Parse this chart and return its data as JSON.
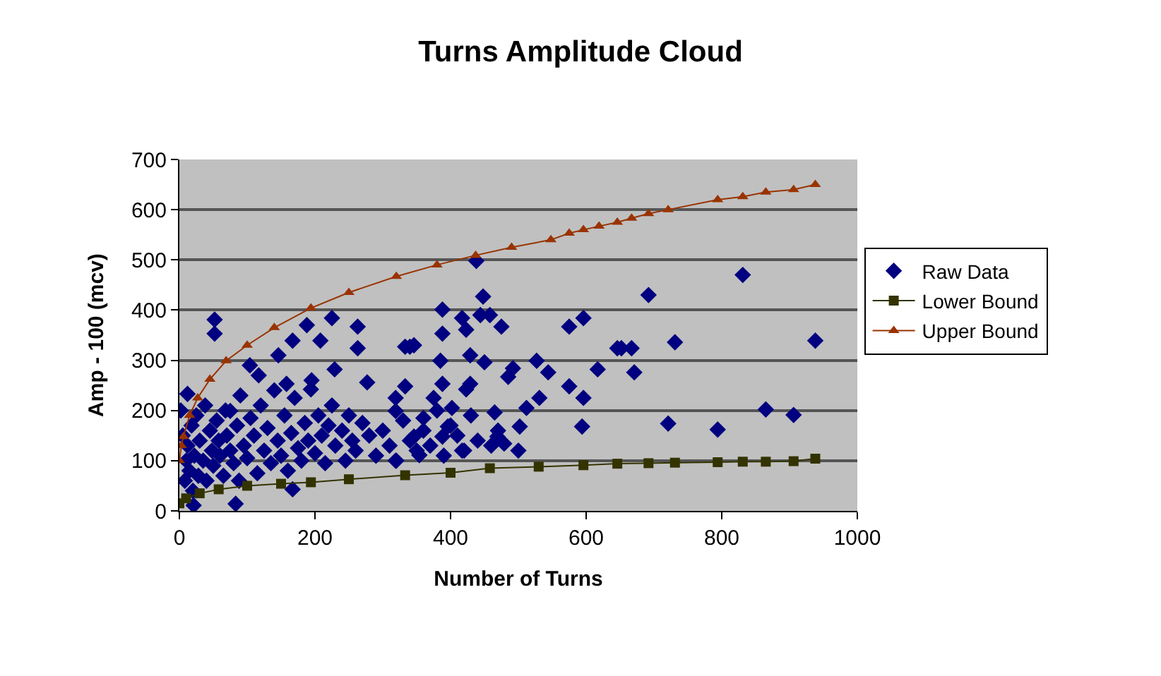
{
  "chart_data": {
    "type": "scatter",
    "title": "Turns Amplitude Cloud",
    "xlabel": "Number of Turns",
    "ylabel": "Amp - 100 (mcv)",
    "xlim": [
      0,
      1000
    ],
    "xticks": [
      0,
      200,
      400,
      600,
      800,
      1000
    ],
    "ylim": [
      0,
      700
    ],
    "yticks": [
      0,
      100,
      200,
      300,
      400,
      500,
      600,
      700
    ],
    "grid": "y",
    "legend": "right",
    "series": [
      {
        "name": "Raw Data",
        "marker": "diamond",
        "color": "#000080",
        "x": [
          652,
          667,
          671,
          692,
          731,
          721,
          794,
          831,
          865,
          906,
          938,
          388,
          448,
          417,
          444,
          458,
          475,
          388,
          423,
          346,
          340,
          385,
          429,
          450,
          492,
          485,
          527,
          544,
          575,
          596,
          646,
          617,
          575,
          596,
          594,
          531,
          512,
          502,
          465,
          479,
          469,
          417,
          333,
          388,
          423,
          429,
          375,
          402,
          360,
          396,
          346,
          354,
          319,
          319,
          388,
          438,
          52,
          52,
          225,
          263,
          263,
          167,
          188,
          208,
          229,
          277,
          146,
          117,
          104,
          333,
          12,
          75,
          158,
          194,
          319,
          83,
          167,
          21,
          2,
          5,
          8,
          10,
          12,
          15,
          18,
          20,
          22,
          25,
          28,
          30,
          35,
          38,
          40,
          45,
          48,
          50,
          55,
          58,
          60,
          65,
          68,
          70,
          75,
          80,
          85,
          88,
          90,
          95,
          100,
          105,
          110,
          115,
          120,
          125,
          130,
          135,
          140,
          145,
          150,
          155,
          160,
          165,
          170,
          175,
          180,
          185,
          190,
          195,
          200,
          205,
          210,
          215,
          220,
          225,
          230,
          240,
          245,
          250,
          255,
          260,
          270,
          280,
          290,
          300,
          310,
          320,
          330,
          340,
          350,
          360,
          370,
          380,
          390,
          400,
          410,
          420,
          430,
          440,
          460,
          470,
          500
        ],
        "values": [
          324,
          324,
          276,
          430,
          336,
          174,
          162,
          470,
          202,
          191,
          339,
          401,
          427,
          384,
          390,
          390,
          367,
          353,
          361,
          330,
          327,
          299,
          310,
          296,
          284,
          267,
          299,
          276,
          367,
          384,
          324,
          282,
          248,
          225,
          168,
          225,
          205,
          168,
          196,
          134,
          148,
          120,
          248,
          253,
          242,
          253,
          225,
          205,
          185,
          168,
          148,
          111,
          199,
          100,
          148,
          498,
          381,
          353,
          384,
          367,
          324,
          339,
          370,
          339,
          282,
          256,
          310,
          270,
          290,
          327,
          233,
          199,
          253,
          242,
          225,
          14,
          43,
          11,
          200,
          150,
          60,
          100,
          130,
          80,
          170,
          40,
          110,
          190,
          70,
          140,
          100,
          210,
          60,
          160,
          120,
          90,
          180,
          140,
          110,
          70,
          200,
          150,
          120,
          95,
          170,
          60,
          230,
          130,
          105,
          185,
          150,
          75,
          210,
          120,
          165,
          95,
          240,
          140,
          110,
          190,
          80,
          155,
          225,
          125,
          100,
          175,
          140,
          260,
          115,
          190,
          150,
          95,
          170,
          210,
          130,
          160,
          100,
          190,
          140,
          120,
          175,
          150,
          110,
          160,
          130,
          100,
          180,
          140,
          120,
          160,
          130,
          200,
          110,
          170,
          150,
          120,
          190,
          140,
          130,
          160,
          120
        ]
      },
      {
        "name": "Lower Bound",
        "type": "line",
        "marker": "square",
        "color": "#333300",
        "x": [
          0,
          10,
          30,
          58,
          100,
          150,
          194,
          250,
          333,
          400,
          458,
          530,
          596,
          646,
          692,
          731,
          794,
          831,
          865,
          906,
          938
        ],
        "values": [
          15,
          25,
          35,
          43,
          50,
          54,
          57,
          63,
          71,
          76,
          85,
          88,
          91,
          94,
          95,
          96,
          97,
          98,
          98,
          99,
          104
        ]
      },
      {
        "name": "Upper Bound",
        "type": "line",
        "marker": "triangle",
        "color": "#993300",
        "x": [
          0,
          3,
          6,
          15,
          27,
          45,
          69,
          100,
          140,
          194,
          250,
          320,
          380,
          437,
          490,
          548,
          575,
          596,
          619,
          646,
          667,
          692,
          721,
          794,
          831,
          865,
          906,
          938
        ],
        "values": [
          100,
          130,
          148,
          190,
          225,
          262,
          299,
          330,
          365,
          404,
          435,
          467,
          490,
          509,
          525,
          540,
          553,
          560,
          567,
          575,
          583,
          592,
          600,
          620,
          626,
          635,
          640,
          650
        ]
      }
    ]
  }
}
